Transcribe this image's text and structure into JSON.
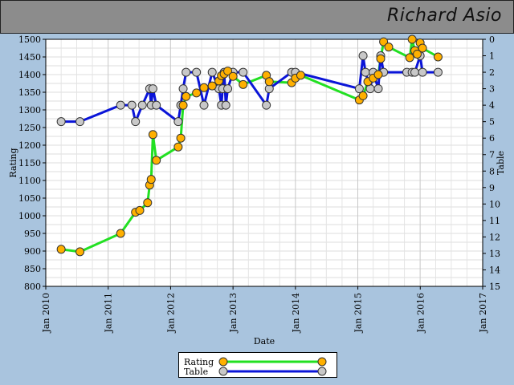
{
  "header": {
    "name": "Richard Asio"
  },
  "colors": {
    "rating": "#22e022",
    "table": "#0a14d8",
    "rating_marker": "#ffb000",
    "table_marker": "#c8c8c8"
  },
  "chart_data": {
    "type": "line",
    "xlabel": "Date",
    "ylabel": "Rating",
    "y2label": "Table",
    "x_ticks": [
      "Jan 2010",
      "Jan 2011",
      "Jan 2012",
      "Jan 2013",
      "Jan 2014",
      "Jan 2015",
      "Jan 2016",
      "Jan 2017"
    ],
    "xlim": [
      "2010-01",
      "2017-01"
    ],
    "ylim": [
      800,
      1500
    ],
    "y_ticks": [
      800,
      850,
      900,
      950,
      1000,
      1050,
      1100,
      1150,
      1200,
      1250,
      1300,
      1350,
      1400,
      1450,
      1500
    ],
    "y2lim": [
      15,
      0
    ],
    "y2_ticks": [
      0,
      1,
      2,
      3,
      4,
      5,
      6,
      7,
      8,
      9,
      10,
      11,
      12,
      13,
      14,
      15
    ],
    "grid": true,
    "legend_position": "bottom-center",
    "series": [
      {
        "name": "Rating",
        "axis": "left",
        "points": [
          [
            "2010-04-01",
            905
          ],
          [
            "2010-07-20",
            898
          ],
          [
            "2011-03-15",
            950
          ],
          [
            "2011-06-10",
            1010
          ],
          [
            "2011-07-05",
            1015
          ],
          [
            "2011-08-20",
            1037
          ],
          [
            "2011-09-01",
            1087
          ],
          [
            "2011-09-10",
            1103
          ],
          [
            "2011-09-20",
            1230
          ],
          [
            "2011-10-10",
            1157
          ],
          [
            "2012-02-15",
            1195
          ],
          [
            "2012-03-01",
            1220
          ],
          [
            "2012-03-15",
            1313
          ],
          [
            "2012-04-01",
            1338
          ],
          [
            "2012-06-01",
            1348
          ],
          [
            "2012-07-15",
            1363
          ],
          [
            "2012-09-01",
            1368
          ],
          [
            "2012-10-10",
            1382
          ],
          [
            "2012-10-25",
            1397
          ],
          [
            "2012-11-10",
            1402
          ],
          [
            "2012-12-01",
            1410
          ],
          [
            "2013-01-01",
            1395
          ],
          [
            "2013-03-01",
            1372
          ],
          [
            "2013-07-15",
            1398
          ],
          [
            "2013-08-01",
            1380
          ],
          [
            "2013-12-10",
            1377
          ],
          [
            "2014-01-01",
            1390
          ],
          [
            "2014-02-01",
            1398
          ],
          [
            "2015-01-10",
            1328
          ],
          [
            "2015-02-01",
            1340
          ],
          [
            "2015-03-01",
            1380
          ],
          [
            "2015-04-01",
            1390
          ],
          [
            "2015-05-01",
            1400
          ],
          [
            "2015-05-15",
            1445
          ],
          [
            "2015-06-01",
            1493
          ],
          [
            "2015-07-01",
            1478
          ],
          [
            "2015-11-01",
            1448
          ],
          [
            "2015-11-15",
            1500
          ],
          [
            "2015-12-01",
            1468
          ],
          [
            "2015-12-15",
            1458
          ],
          [
            "2016-01-01",
            1490
          ],
          [
            "2016-01-15",
            1475
          ],
          [
            "2016-04-15",
            1450
          ]
        ]
      },
      {
        "name": "Table",
        "axis": "right",
        "points": [
          [
            "2010-04-01",
            5
          ],
          [
            "2010-07-20",
            5
          ],
          [
            "2011-03-15",
            4
          ],
          [
            "2011-05-20",
            4
          ],
          [
            "2011-06-10",
            5
          ],
          [
            "2011-07-20",
            4
          ],
          [
            "2011-09-01",
            3
          ],
          [
            "2011-09-10",
            4
          ],
          [
            "2011-09-20",
            3
          ],
          [
            "2011-10-10",
            4
          ],
          [
            "2012-02-15",
            5
          ],
          [
            "2012-03-01",
            4
          ],
          [
            "2012-03-15",
            3
          ],
          [
            "2012-04-01",
            2
          ],
          [
            "2012-06-01",
            2
          ],
          [
            "2012-07-15",
            4
          ],
          [
            "2012-09-01",
            2
          ],
          [
            "2012-10-10",
            3
          ],
          [
            "2012-10-25",
            4
          ],
          [
            "2012-11-01",
            3
          ],
          [
            "2012-11-10",
            2
          ],
          [
            "2012-11-20",
            4
          ],
          [
            "2012-12-01",
            3
          ],
          [
            "2013-01-01",
            2
          ],
          [
            "2013-03-01",
            2
          ],
          [
            "2013-07-15",
            4
          ],
          [
            "2013-08-01",
            3
          ],
          [
            "2013-12-10",
            2
          ],
          [
            "2014-01-01",
            2
          ],
          [
            "2015-01-10",
            3
          ],
          [
            "2015-02-01",
            1
          ],
          [
            "2015-02-15",
            2
          ],
          [
            "2015-03-15",
            3
          ],
          [
            "2015-04-01",
            2
          ],
          [
            "2015-05-01",
            3
          ],
          [
            "2015-05-15",
            1
          ],
          [
            "2015-06-01",
            2
          ],
          [
            "2015-10-15",
            2
          ],
          [
            "2015-11-15",
            2
          ],
          [
            "2015-12-01",
            2
          ],
          [
            "2016-01-01",
            1
          ],
          [
            "2016-01-15",
            2
          ],
          [
            "2016-04-15",
            2
          ]
        ]
      }
    ]
  }
}
